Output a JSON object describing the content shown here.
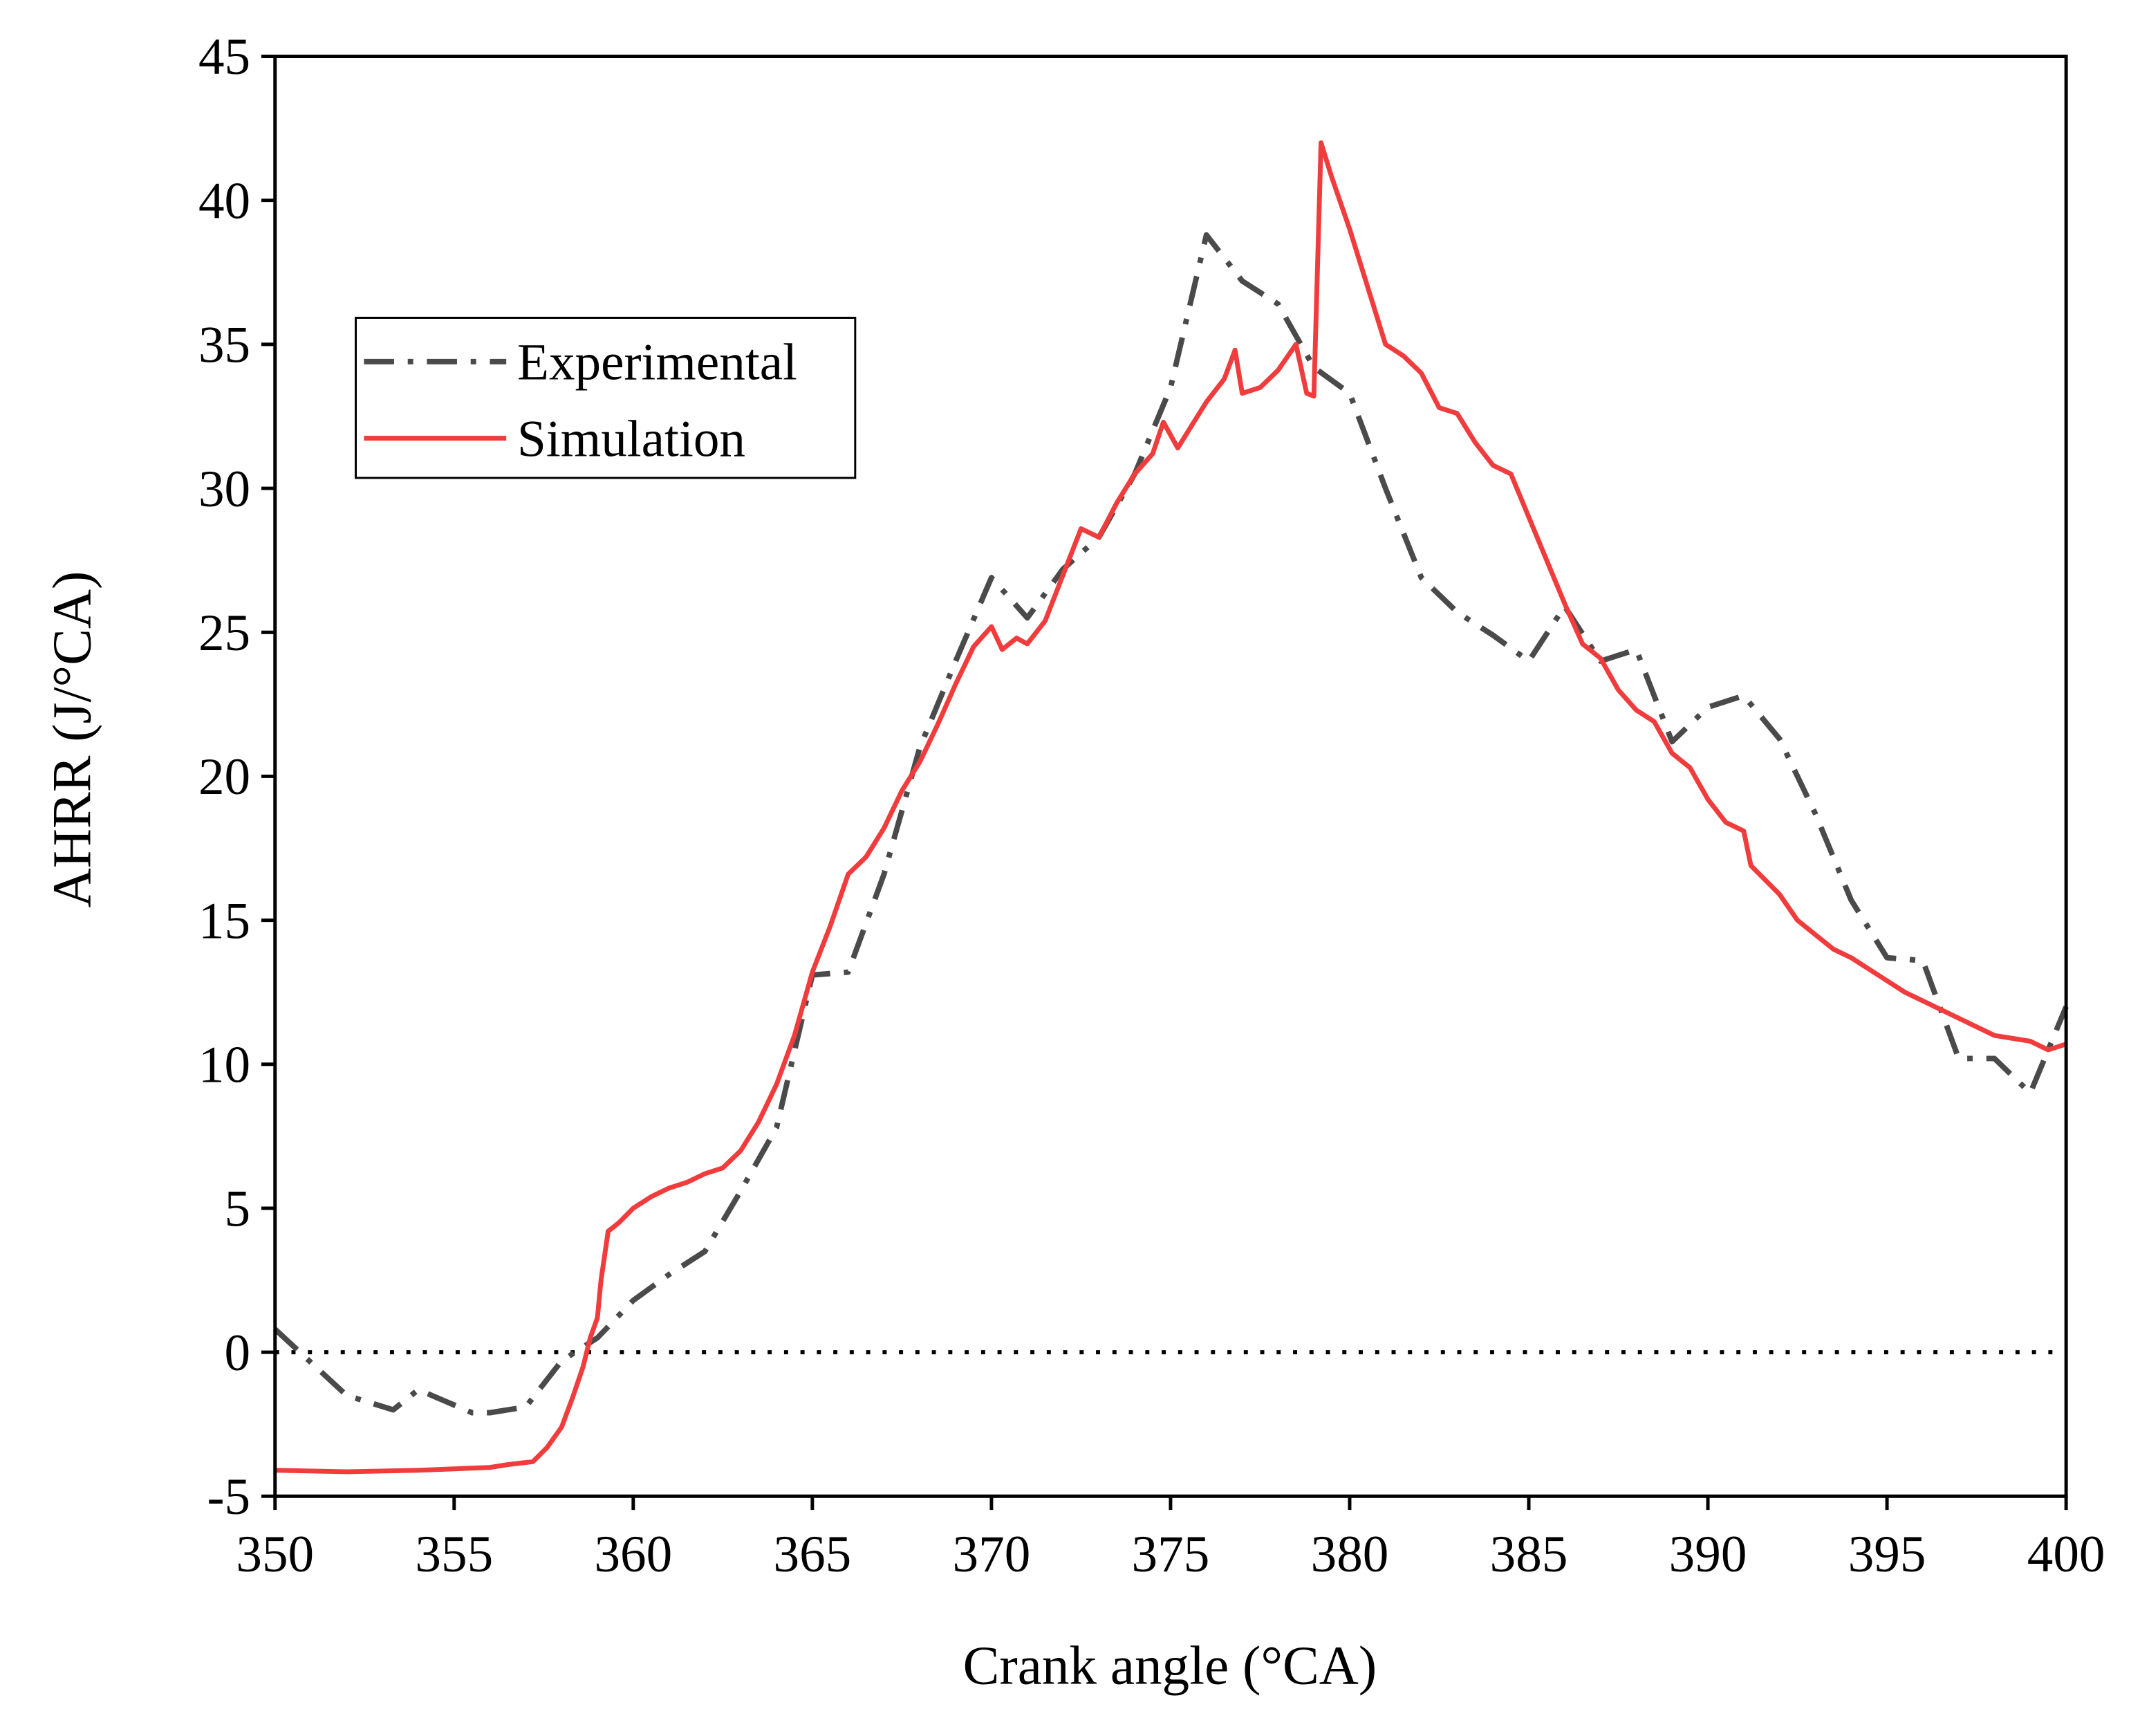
{
  "chart_data": {
    "type": "line",
    "xlabel": "Crank angle (°CA)",
    "ylabel": "AHRR (J/°CA)",
    "xlim": [
      350,
      400
    ],
    "xticks": [
      350,
      355,
      360,
      365,
      370,
      375,
      380,
      385,
      390,
      395,
      400
    ],
    "ylim": [
      -5,
      45
    ],
    "yticks": [
      -5,
      0,
      5,
      10,
      15,
      20,
      25,
      30,
      35,
      40,
      45
    ],
    "hline": 0,
    "legend": "upper left",
    "series": [
      {
        "name": "Experimental",
        "color": "#4a4a4a",
        "style": "dashdot",
        "x": [
          350,
          352,
          353.3,
          354,
          355.5,
          356,
          357,
          358,
          359,
          360,
          361,
          362,
          363,
          364,
          365,
          366,
          367,
          368,
          369,
          370,
          371,
          372,
          373,
          374,
          375,
          376,
          377,
          378,
          379,
          380,
          381,
          382,
          383,
          384,
          385,
          386,
          387,
          388,
          389,
          390,
          391,
          392,
          393,
          394,
          395,
          396,
          397,
          398,
          399,
          400
        ],
        "values": [
          0.8,
          -1.5,
          -2.0,
          -1.3,
          -2.1,
          -2.1,
          -1.9,
          -0.3,
          0.5,
          1.8,
          2.7,
          3.5,
          5.6,
          7.8,
          13.1,
          13.2,
          16.6,
          21,
          24,
          26.9,
          25.5,
          27.2,
          28.3,
          30.5,
          33.5,
          38.8,
          37.2,
          36.4,
          34.2,
          33.3,
          30,
          26.9,
          25.7,
          24.9,
          24.0,
          25.9,
          24.0,
          24.4,
          21.2,
          22.4,
          22.8,
          21.3,
          18.7,
          15.7,
          13.7,
          13.6,
          10.2,
          10.2,
          9.0,
          12.0
        ]
      },
      {
        "name": "Simulation",
        "color": "#f03c3c",
        "style": "solid",
        "x": [
          350,
          352,
          354,
          356,
          356.5,
          357.2,
          357.6,
          358,
          358.3,
          358.6,
          358.8,
          359,
          359.1,
          359.3,
          359.6,
          360,
          360.5,
          361,
          361.5,
          362,
          362.5,
          363,
          363.5,
          364,
          364.5,
          365,
          365.5,
          366,
          366.5,
          367,
          367.5,
          368,
          368.5,
          369,
          369.5,
          370,
          370.3,
          370.7,
          371,
          371.5,
          372,
          372.5,
          373,
          373.5,
          374,
          374.5,
          374.8,
          375.2,
          375.6,
          376,
          376.5,
          376.8,
          377,
          377.5,
          378,
          378.5,
          378.8,
          379,
          379.2,
          379.5,
          380,
          380.5,
          381,
          381.5,
          382,
          382.5,
          383,
          383.5,
          384,
          384.5,
          385,
          385.5,
          386,
          386.5,
          387,
          387.5,
          388,
          388.5,
          389,
          389.5,
          390,
          390.5,
          391,
          391.2,
          392,
          392.5,
          393,
          393.5,
          394,
          394.5,
          395,
          395.5,
          396,
          396.5,
          397,
          397.5,
          398,
          398.5,
          399,
          399.5,
          400
        ],
        "values": [
          -4.1,
          -4.15,
          -4.1,
          -4.0,
          -3.9,
          -3.8,
          -3.3,
          -2.6,
          -1.6,
          -0.5,
          0.5,
          1.2,
          2.5,
          4.2,
          4.5,
          5.0,
          5.4,
          5.7,
          5.9,
          6.2,
          6.4,
          7.0,
          8.0,
          9.3,
          11.0,
          13.2,
          14.8,
          16.6,
          17.2,
          18.2,
          19.5,
          20.5,
          21.8,
          23.2,
          24.5,
          25.2,
          24.4,
          24.8,
          24.6,
          25.4,
          27.0,
          28.6,
          28.3,
          29.5,
          30.5,
          31.2,
          32.3,
          31.4,
          32.2,
          33.0,
          33.8,
          34.8,
          33.3,
          33.5,
          34.1,
          35.0,
          33.3,
          33.2,
          42.0,
          40.8,
          39.0,
          37.0,
          35.0,
          34.6,
          34.0,
          32.8,
          32.6,
          31.6,
          30.8,
          30.5,
          29.0,
          27.5,
          26.0,
          24.6,
          24.1,
          23.0,
          22.3,
          21.9,
          20.8,
          20.3,
          19.2,
          18.4,
          18.1,
          16.9,
          15.9,
          15.0,
          14.5,
          14.0,
          13.7,
          13.3,
          12.9,
          12.5,
          12.2,
          11.9,
          11.6,
          11.3,
          11.0,
          10.9,
          10.8,
          10.5,
          10.7
        ]
      }
    ]
  }
}
